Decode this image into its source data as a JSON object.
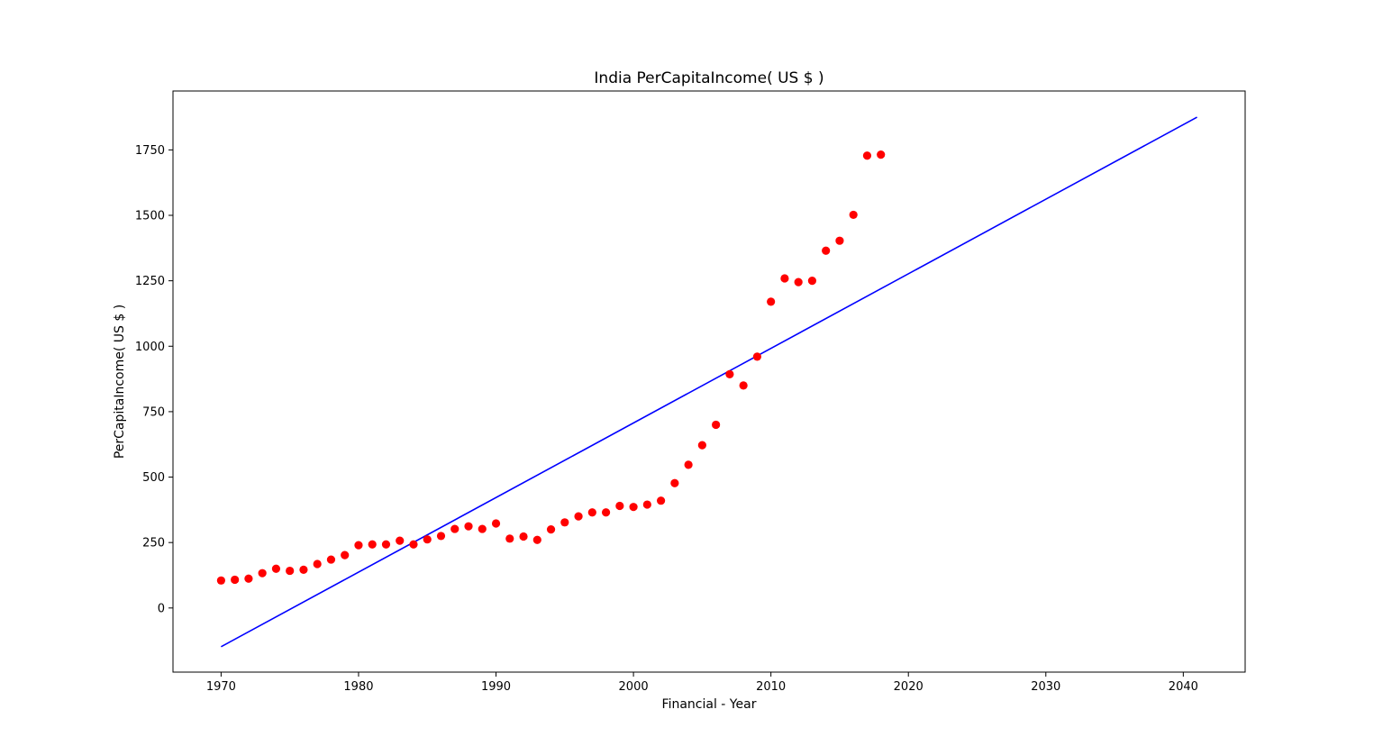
{
  "chart_data": {
    "type": "scatter",
    "title": "India PerCapitaIncome( US $ )",
    "xlabel": "Financial - Year",
    "ylabel": "PerCapitaIncome( US $ )",
    "xlim": [
      1966.5,
      2044.5
    ],
    "ylim": [
      -245,
      1975
    ],
    "xticks": [
      1970,
      1980,
      1990,
      2000,
      2010,
      2020,
      2030,
      2040
    ],
    "yticks": [
      0,
      250,
      500,
      750,
      1000,
      1250,
      1500,
      1750
    ],
    "grid": false,
    "legend": "none",
    "series": [
      {
        "kind": "scatter",
        "color": "#ff0000",
        "x": [
          1970,
          1971,
          1972,
          1973,
          1974,
          1975,
          1976,
          1977,
          1978,
          1979,
          1980,
          1981,
          1982,
          1983,
          1984,
          1985,
          1986,
          1987,
          1988,
          1989,
          1990,
          1991,
          1992,
          1993,
          1994,
          1995,
          1996,
          1997,
          1998,
          1999,
          2000,
          2001,
          2002,
          2003,
          2004,
          2005,
          2006,
          2007,
          2008,
          2009,
          2010,
          2011,
          2012,
          2013,
          2014,
          2015,
          2016,
          2017,
          2018
        ],
        "y": [
          105,
          108,
          112,
          133,
          150,
          142,
          146,
          168,
          185,
          202,
          240,
          243,
          243,
          257,
          243,
          262,
          275,
          302,
          312,
          302,
          323,
          265,
          273,
          260,
          300,
          327,
          350,
          365,
          365,
          390,
          386,
          395,
          410,
          477,
          547,
          622,
          700,
          893,
          850,
          960,
          1170,
          1259,
          1245,
          1250,
          1365,
          1403,
          1502,
          1728,
          1732
        ]
      },
      {
        "kind": "line",
        "color": "#0000ff",
        "x": [
          1970,
          2041
        ],
        "y": [
          -148,
          1875
        ]
      }
    ]
  }
}
